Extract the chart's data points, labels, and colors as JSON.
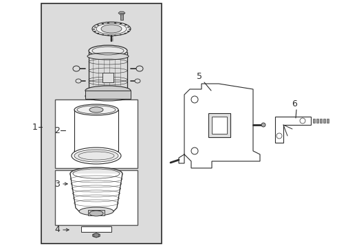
{
  "bg_color": "#ffffff",
  "panel_bg": "#dcdcdc",
  "line_color": "#2a2a2a",
  "label_color": "#000000",
  "figsize": [
    4.9,
    3.6
  ],
  "dpi": 100
}
